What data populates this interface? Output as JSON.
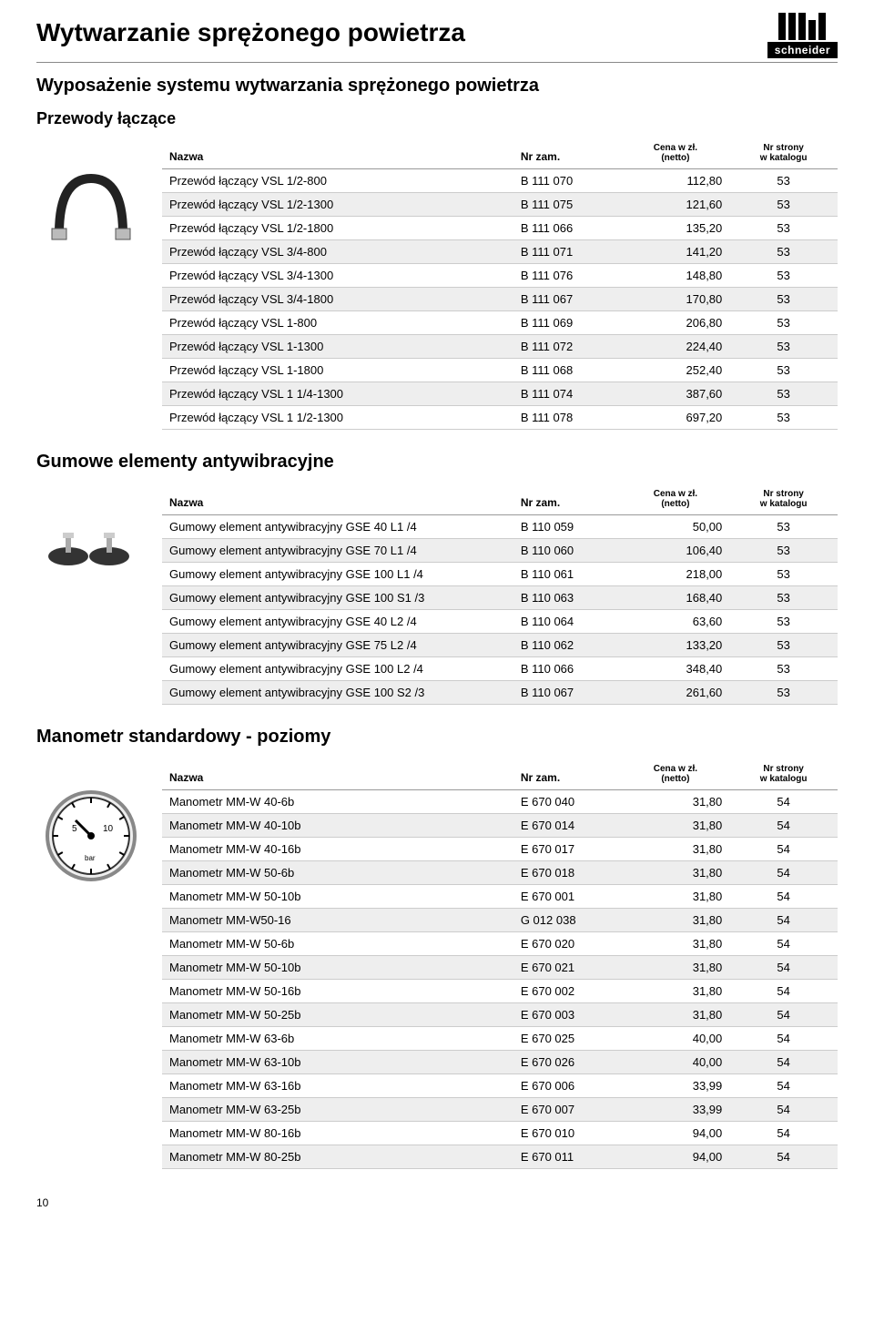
{
  "header": {
    "main_title": "Wytwarzanie sprężonego powietrza",
    "sub_title": "Wyposażenie systemu wytwarzania sprężonego powietrza",
    "logo_text": "schneider"
  },
  "columns": {
    "name": "Nazwa",
    "nr": "Nr zam.",
    "price_l1": "Cena w zł.",
    "price_l2": "(netto)",
    "page_l1": "Nr strony",
    "page_l2": "w katalogu"
  },
  "sections": [
    {
      "title": "Przewody łączące",
      "title_class": "section-title",
      "image": "hose",
      "rows": [
        {
          "name": "Przewód łączący  VSL 1/2-800",
          "nr": "B 111 070",
          "price": "112,80",
          "page": "53"
        },
        {
          "name": "Przewód łączący  VSL 1/2-1300",
          "nr": "B 111 075",
          "price": "121,60",
          "page": "53"
        },
        {
          "name": "Przewód łączący  VSL 1/2-1800",
          "nr": "B 111 066",
          "price": "135,20",
          "page": "53"
        },
        {
          "name": "Przewód łączący  VSL 3/4-800",
          "nr": "B 111 071",
          "price": "141,20",
          "page": "53"
        },
        {
          "name": "Przewód łączący  VSL 3/4-1300",
          "nr": "B 111 076",
          "price": "148,80",
          "page": "53"
        },
        {
          "name": "Przewód łączący  VSL 3/4-1800",
          "nr": "B 111 067",
          "price": "170,80",
          "page": "53"
        },
        {
          "name": "Przewód łączący  VSL 1-800",
          "nr": "B 111 069",
          "price": "206,80",
          "page": "53"
        },
        {
          "name": "Przewód łączący  VSL 1-1300",
          "nr": "B 111 072",
          "price": "224,40",
          "page": "53"
        },
        {
          "name": "Przewód łączący  VSL 1-1800",
          "nr": "B 111 068",
          "price": "252,40",
          "page": "53"
        },
        {
          "name": "Przewód łączący  VSL 1 1/4-1300",
          "nr": "B 111 074",
          "price": "387,60",
          "page": "53"
        },
        {
          "name": "Przewód łączący  VSL 1 1/2-1300",
          "nr": "B 111 078",
          "price": "697,20",
          "page": "53"
        }
      ]
    },
    {
      "title": "Gumowe elementy antywibracyjne",
      "title_class": "section-title-large",
      "image": "mounts",
      "rows": [
        {
          "name": "Gumowy element antywibracyjny  GSE 40 L1 /4",
          "nr": "B 110 059",
          "price": "50,00",
          "page": "53"
        },
        {
          "name": "Gumowy element antywibracyjny  GSE 70 L1 /4",
          "nr": "B 110 060",
          "price": "106,40",
          "page": "53"
        },
        {
          "name": "Gumowy element antywibracyjny  GSE 100 L1 /4",
          "nr": "B 110 061",
          "price": "218,00",
          "page": "53"
        },
        {
          "name": "Gumowy element antywibracyjny  GSE 100 S1 /3",
          "nr": "B 110 063",
          "price": "168,40",
          "page": "53"
        },
        {
          "name": "Gumowy element antywibracyjny  GSE 40 L2 /4",
          "nr": "B 110 064",
          "price": "63,60",
          "page": "53"
        },
        {
          "name": "Gumowy element antywibracyjny  GSE 75 L2 /4",
          "nr": "B 110 062",
          "price": "133,20",
          "page": "53"
        },
        {
          "name": "Gumowy element antywibracyjny  GSE 100 L2 /4",
          "nr": "B 110 066",
          "price": "348,40",
          "page": "53"
        },
        {
          "name": "Gumowy element antywibracyjny  GSE 100 S2 /3",
          "nr": "B 110 067",
          "price": "261,60",
          "page": "53"
        }
      ]
    },
    {
      "title": "Manometr standardowy - poziomy",
      "title_class": "section-title-large",
      "image": "gauge",
      "rows": [
        {
          "name": "Manometr  MM-W 40-6b",
          "nr": "E 670 040",
          "price": "31,80",
          "page": "54"
        },
        {
          "name": "Manometr  MM-W 40-10b",
          "nr": "E 670 014",
          "price": "31,80",
          "page": "54"
        },
        {
          "name": "Manometr  MM-W 40-16b",
          "nr": "E 670 017",
          "price": "31,80",
          "page": "54"
        },
        {
          "name": "Manometr  MM-W 50-6b",
          "nr": "E 670 018",
          "price": "31,80",
          "page": "54"
        },
        {
          "name": "Manometr  MM-W 50-10b",
          "nr": "E 670 001",
          "price": "31,80",
          "page": "54"
        },
        {
          "name": "Manometr  MM-W50-16",
          "nr": "G 012 038",
          "price": "31,80",
          "page": "54"
        },
        {
          "name": "Manometr  MM-W 50-6b",
          "nr": "E 670 020",
          "price": "31,80",
          "page": "54"
        },
        {
          "name": "Manometr  MM-W 50-10b",
          "nr": "E 670 021",
          "price": "31,80",
          "page": "54"
        },
        {
          "name": "Manometr  MM-W 50-16b",
          "nr": "E 670 002",
          "price": "31,80",
          "page": "54"
        },
        {
          "name": "Manometr  MM-W 50-25b",
          "nr": "E 670 003",
          "price": "31,80",
          "page": "54"
        },
        {
          "name": "Manometr  MM-W 63-6b",
          "nr": "E 670 025",
          "price": "40,00",
          "page": "54"
        },
        {
          "name": "Manometr  MM-W 63-10b",
          "nr": "E 670 026",
          "price": "40,00",
          "page": "54"
        },
        {
          "name": "Manometr  MM-W 63-16b",
          "nr": "E 670 006",
          "price": "33,99",
          "page": "54"
        },
        {
          "name": "Manometr  MM-W 63-25b",
          "nr": "E 670 007",
          "price": "33,99",
          "page": "54"
        },
        {
          "name": "Manometr  MM-W 80-16b",
          "nr": "E 670 010",
          "price": "94,00",
          "page": "54"
        },
        {
          "name": "Manometr  MM-W 80-25b",
          "nr": "E 670 011",
          "price": "94,00",
          "page": "54"
        }
      ]
    }
  ],
  "footer": {
    "page_number": "10"
  },
  "style": {
    "row_stripe_color": "#eeeeee",
    "border_color": "#cccccc",
    "header_border_color": "#999999",
    "body_font_size": 13,
    "header_font_size": 12
  }
}
